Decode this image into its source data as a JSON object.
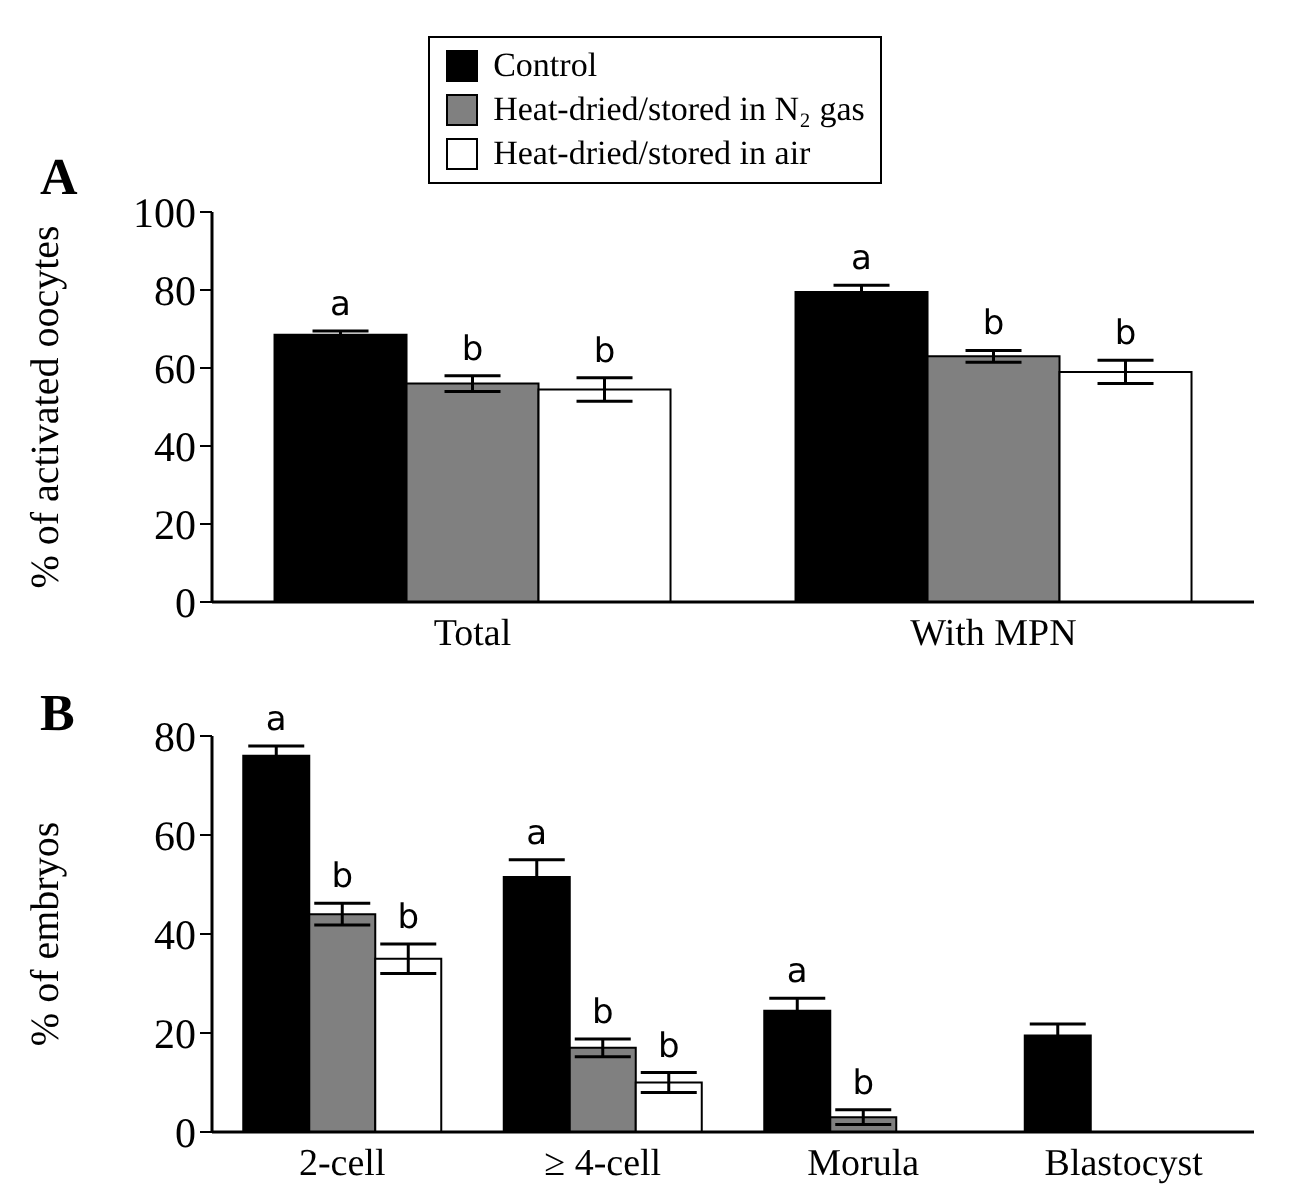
{
  "chart_data": [
    {
      "type": "bar",
      "title": "A",
      "ylabel": "% of activated oocytes",
      "categories": [
        "Total",
        "With MPN"
      ],
      "series": [
        {
          "name": "Control",
          "color": "#000000",
          "values": [
            68.5,
            79.5
          ],
          "errors": [
            1,
            1.7
          ],
          "value_labels": [
            "a",
            "a"
          ]
        },
        {
          "name": "Heat-dried/stored in N₂ gas",
          "color": "#808080",
          "values": [
            56,
            63
          ],
          "errors": [
            2,
            1.5
          ],
          "value_labels": [
            "b",
            "b"
          ]
        },
        {
          "name": "Heat-dried/stored in air",
          "color": "#ffffff",
          "values": [
            54.5,
            59
          ],
          "errors": [
            3,
            3
          ],
          "value_labels": [
            "b",
            "b"
          ]
        }
      ],
      "ylim": [
        0,
        100
      ],
      "yticks": [
        0,
        20,
        40,
        60,
        80,
        100
      ],
      "legend": "top"
    },
    {
      "type": "bar",
      "title": "B",
      "ylabel": "% of embryos",
      "categories": [
        "2-cell",
        "≥ 4-cell",
        "Morula",
        "Blastocyst"
      ],
      "series": [
        {
          "color": "#000000",
          "values": [
            76,
            51.5,
            24.5,
            19.5
          ],
          "errors": [
            2,
            3.5,
            2.5,
            2.3
          ],
          "value_labels": [
            "a",
            "a",
            "a",
            null
          ]
        },
        {
          "color": "#808080",
          "values": [
            44,
            17,
            3,
            null
          ],
          "errors": [
            2.2,
            1.8,
            1.5,
            null
          ],
          "value_labels": [
            "b",
            "b",
            "b",
            null
          ]
        },
        {
          "color": "#ffffff",
          "values": [
            35,
            10,
            null,
            null
          ],
          "errors": [
            3,
            2,
            null,
            null
          ],
          "value_labels": [
            "b",
            "b",
            null,
            null
          ]
        }
      ],
      "ylim": [
        0,
        80
      ],
      "yticks": [
        0,
        20,
        40,
        60,
        80
      ]
    }
  ]
}
